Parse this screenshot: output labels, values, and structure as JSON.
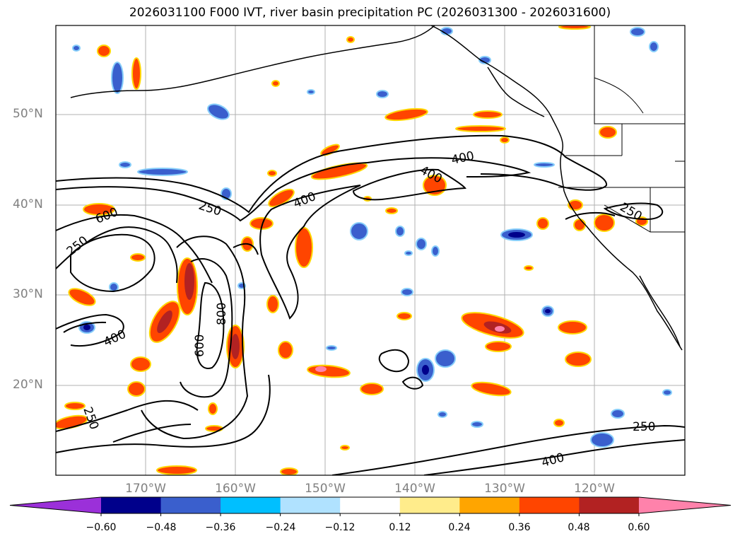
{
  "title": "2026031100 F000 IVT, river basin precipitation PC (2026031300 - 2026031600)",
  "map": {
    "lat_labels": [
      "50°N",
      "40°N",
      "30°N",
      "20°N"
    ],
    "lon_labels": [
      "170°W",
      "160°W",
      "150°W",
      "140°W",
      "130°W",
      "120°W"
    ],
    "contour_labels": [
      "250",
      "400",
      "400",
      "400",
      "600",
      "250",
      "250",
      "400",
      "600",
      "800",
      "600",
      "250",
      "250",
      "400"
    ],
    "colors": {
      "gridline": "#b0b0b0",
      "coastline": "#000000",
      "contour": "#000000"
    }
  },
  "colorbar": {
    "ticks": [
      "−0.60",
      "−0.48",
      "−0.36",
      "−0.24",
      "−0.12",
      "0.12",
      "0.24",
      "0.36",
      "0.48",
      "0.60"
    ],
    "colors": [
      "#9b30d9",
      "#00008b",
      "#3a5fcd",
      "#00bfff",
      "#b0e2ff",
      "#ffffff",
      "#ffec8b",
      "#ffa500",
      "#ff4500",
      "#b22222",
      "#ff82ab"
    ]
  }
}
